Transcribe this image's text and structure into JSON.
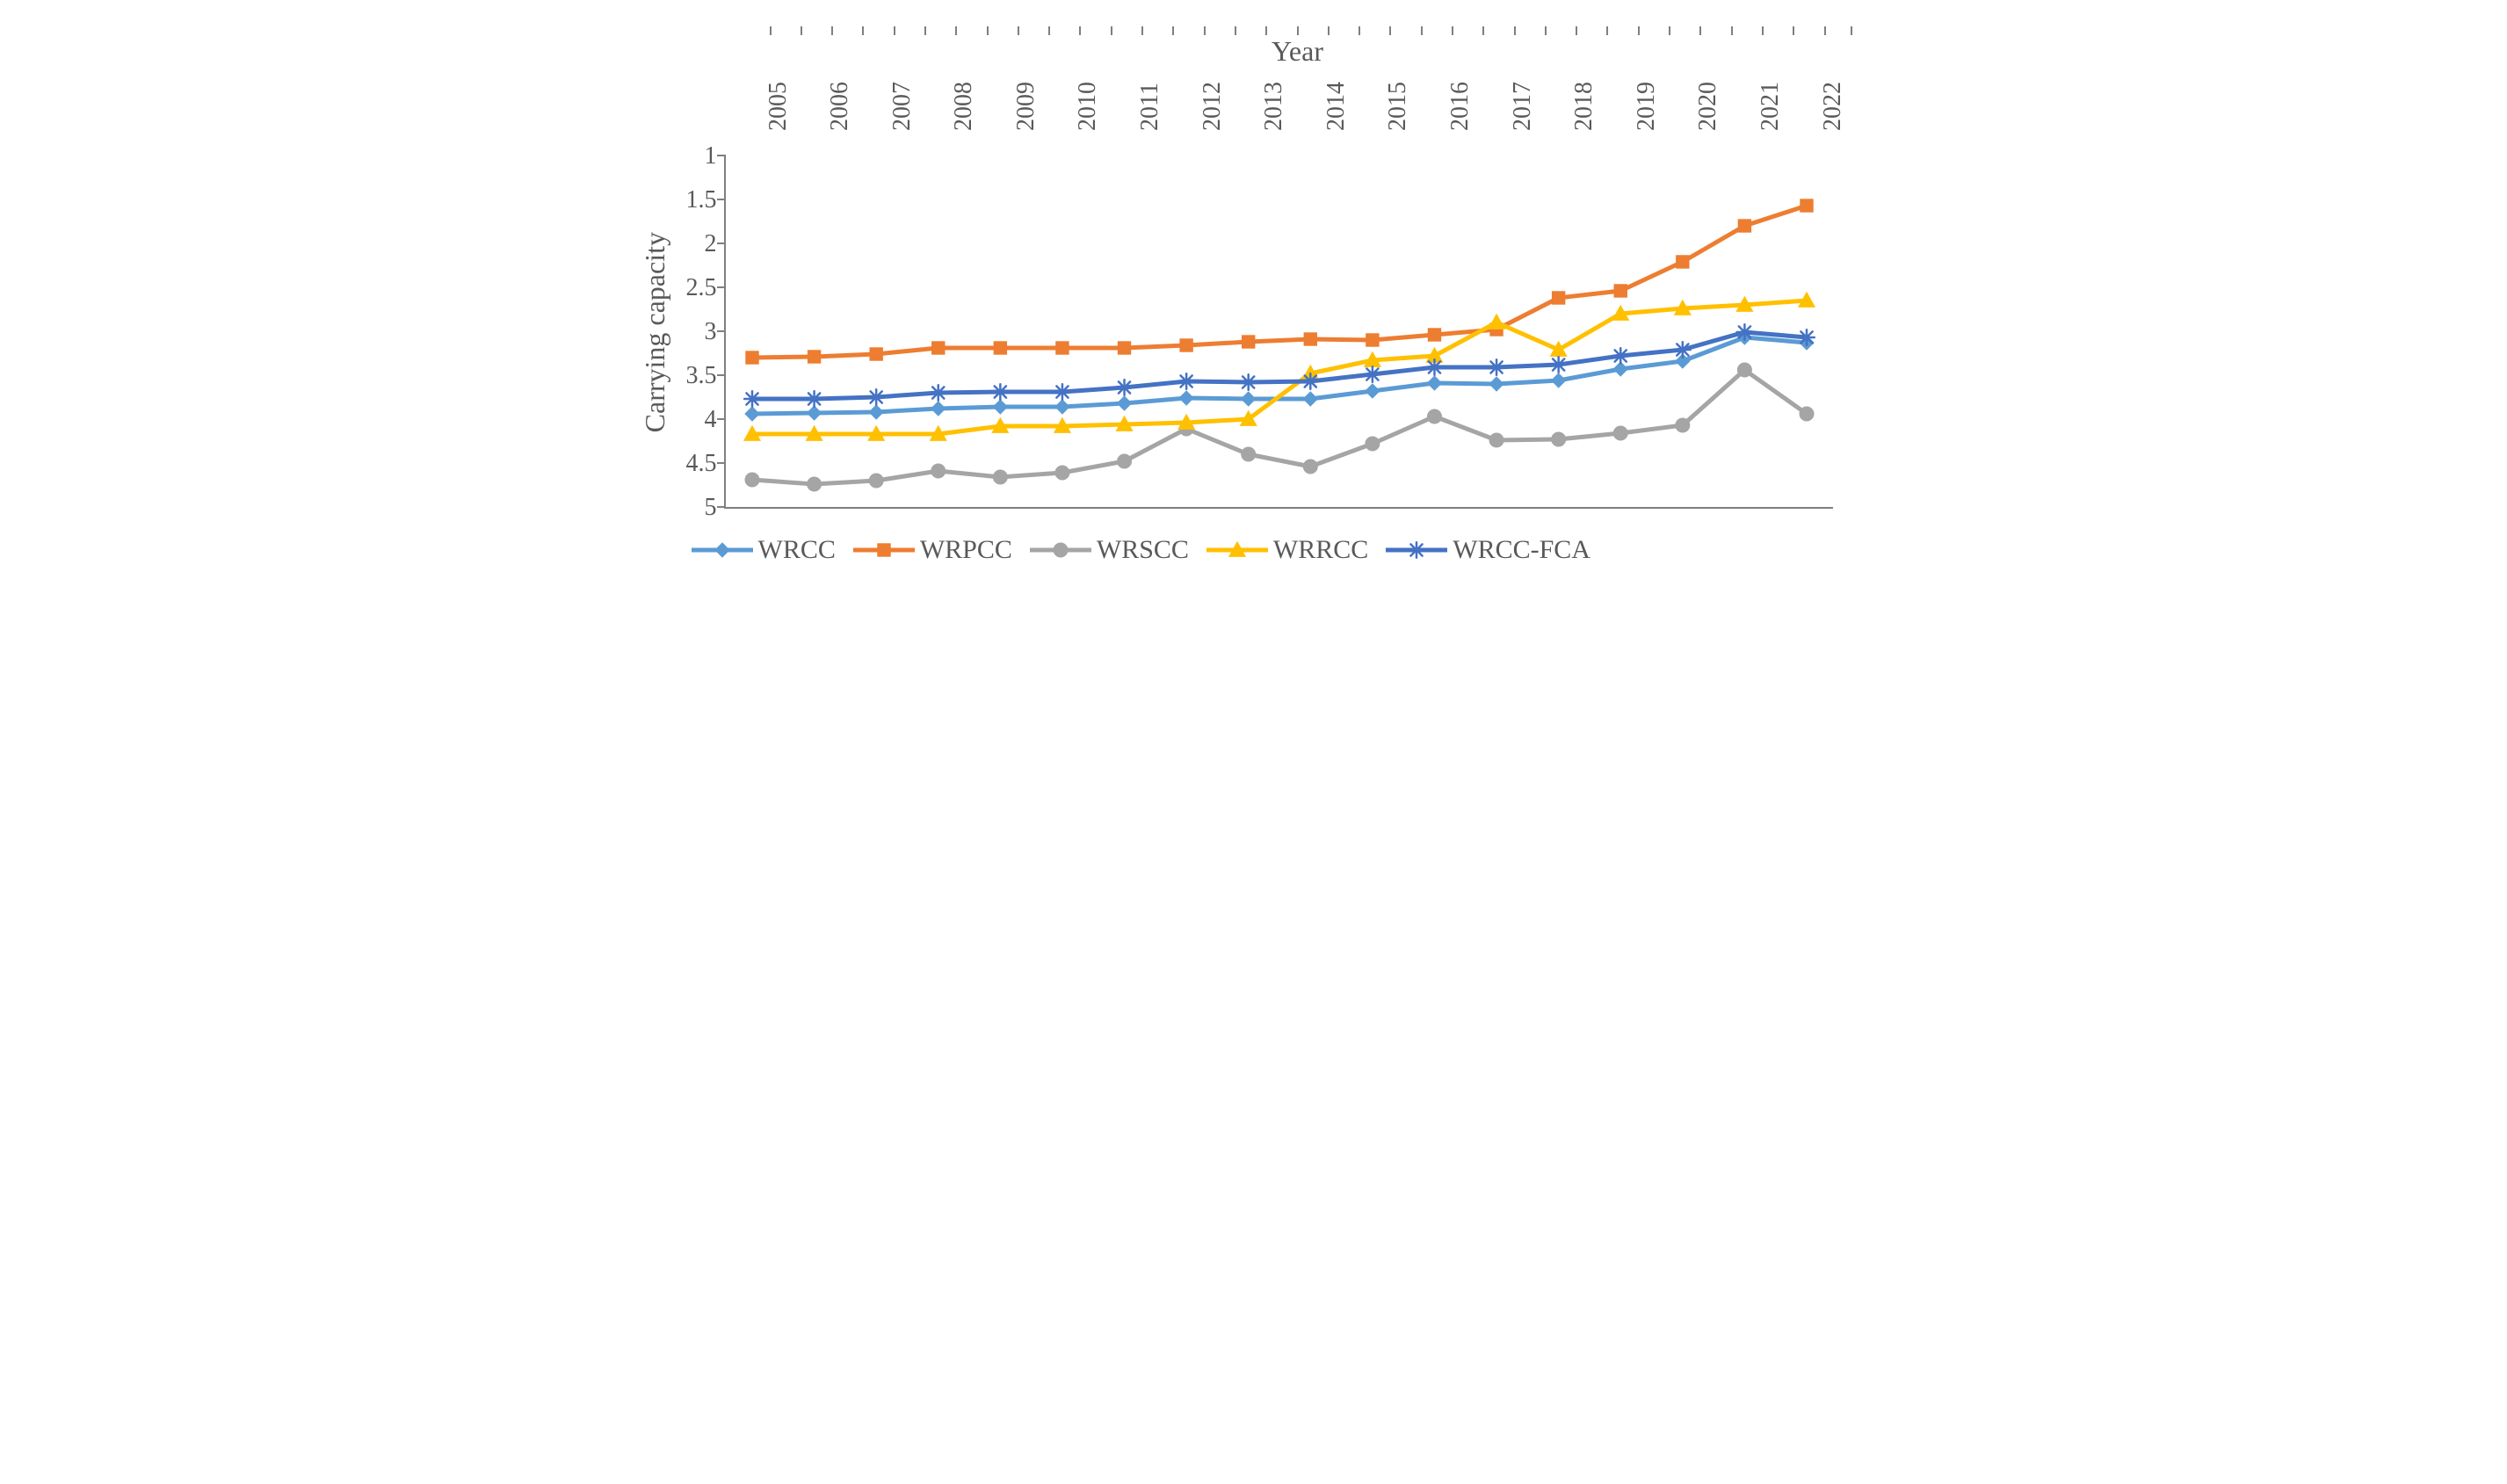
{
  "chart": {
    "type": "line",
    "title_top": "Year",
    "y_axis_title": "Carrying capacity",
    "x_categories": [
      "2005",
      "2006",
      "2007",
      "2008",
      "2009",
      "2010",
      "2011",
      "2012",
      "2013",
      "2014",
      "2015",
      "2016",
      "2017",
      "2018",
      "2019",
      "2020",
      "2021",
      "2022"
    ],
    "y_ticks": [
      1,
      1.5,
      2,
      2.5,
      3,
      3.5,
      4,
      4.5,
      5
    ],
    "ylim": [
      1,
      5
    ],
    "y_inverted": true,
    "background_color": "#ffffff",
    "axis_color": "#7f7f7f",
    "text_color": "#595959",
    "title_fontsize": 32,
    "label_fontsize": 28,
    "legend_fontsize": 30,
    "line_width": 5,
    "marker_size": 8,
    "series": [
      {
        "name": "WRCC",
        "color": "#5b9bd5",
        "marker": "diamond",
        "values": [
          3.94,
          3.93,
          3.92,
          3.88,
          3.86,
          3.86,
          3.82,
          3.76,
          3.77,
          3.77,
          3.68,
          3.59,
          3.6,
          3.56,
          3.43,
          3.34,
          3.07,
          3.13
        ]
      },
      {
        "name": "WRPCC",
        "color": "#ed7d31",
        "marker": "square",
        "values": [
          3.3,
          3.29,
          3.26,
          3.19,
          3.19,
          3.19,
          3.19,
          3.16,
          3.12,
          3.09,
          3.1,
          3.04,
          2.98,
          2.62,
          2.54,
          2.21,
          1.8,
          1.57
        ]
      },
      {
        "name": "WRSCC",
        "color": "#a5a5a5",
        "marker": "circle",
        "values": [
          4.69,
          4.74,
          4.7,
          4.59,
          4.66,
          4.61,
          4.48,
          4.11,
          4.4,
          4.54,
          4.28,
          3.97,
          4.24,
          4.23,
          4.16,
          4.07,
          3.44,
          3.94
        ]
      },
      {
        "name": "WRRCC",
        "color": "#ffc000",
        "marker": "triangle",
        "values": [
          4.17,
          4.17,
          4.17,
          4.17,
          4.08,
          4.08,
          4.06,
          4.04,
          4.0,
          3.48,
          3.33,
          3.28,
          2.9,
          3.21,
          2.8,
          2.74,
          2.7,
          2.65
        ]
      },
      {
        "name": "WRCC-FCA",
        "color": "#4472c4",
        "marker": "asterisk",
        "values": [
          3.77,
          3.77,
          3.75,
          3.7,
          3.69,
          3.69,
          3.64,
          3.57,
          3.58,
          3.57,
          3.49,
          3.41,
          3.41,
          3.38,
          3.28,
          3.21,
          3.01,
          3.07
        ]
      }
    ]
  }
}
